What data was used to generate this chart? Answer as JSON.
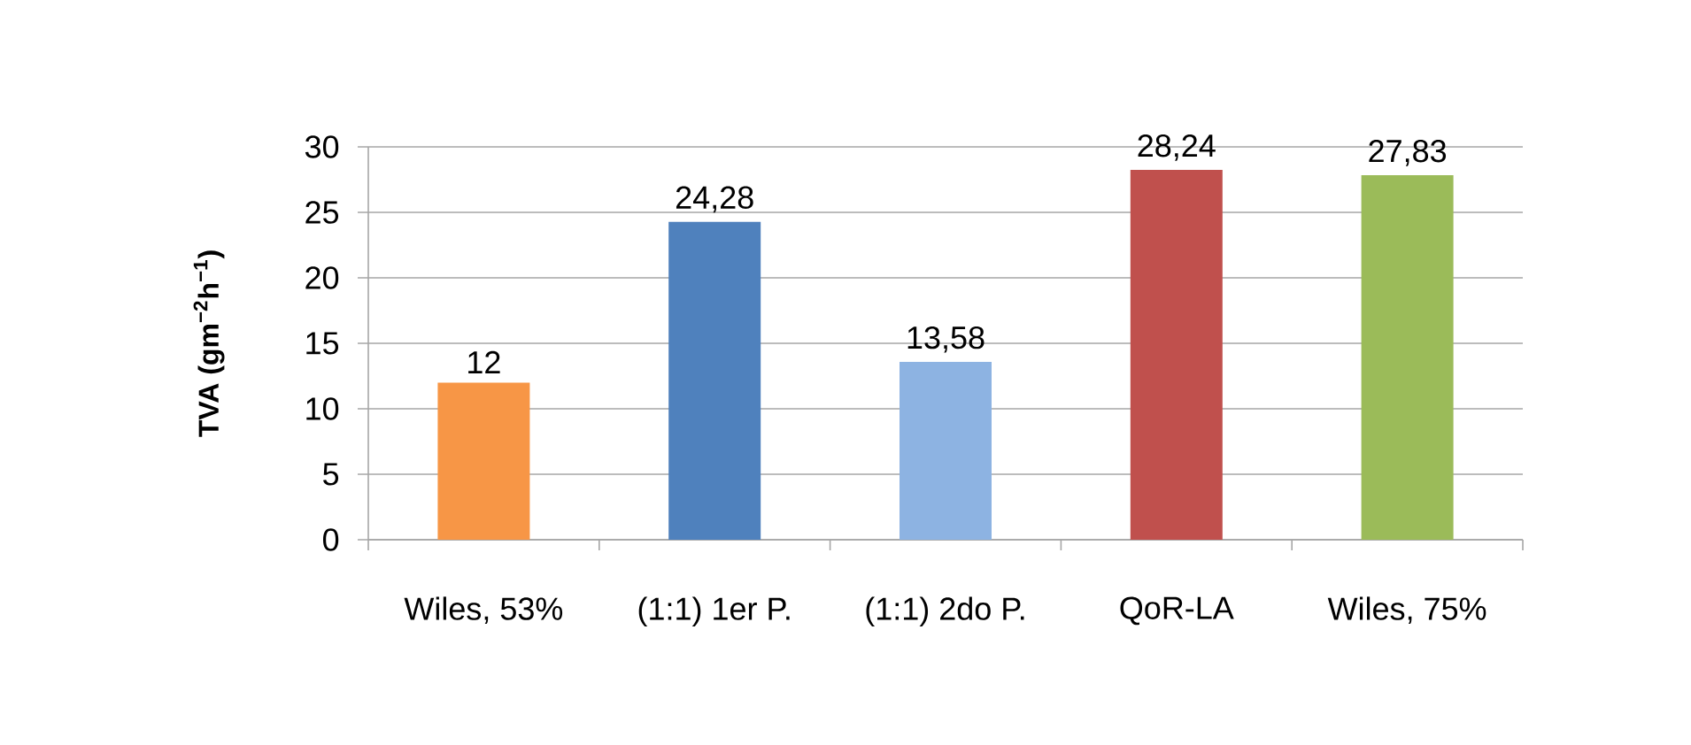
{
  "chart_data": {
    "type": "bar",
    "categories": [
      "Wiles, 53%",
      "(1:1) 1er P.",
      "(1:1) 2do P.",
      "QoR-LA",
      "Wiles, 75%"
    ],
    "values": [
      12,
      24.28,
      13.58,
      28.24,
      27.83
    ],
    "value_labels": [
      "12",
      "24,28",
      "13,58",
      "28,24",
      "27,83"
    ],
    "colors": [
      "#f79646",
      "#4f81bd",
      "#8db3e2",
      "#c0504d",
      "#9bbb59"
    ],
    "ylabel": "TVA (gm$^{−2}$h$^{−1}$)",
    "ylim": [
      0,
      30
    ],
    "yticks": [
      0,
      5,
      10,
      15,
      20,
      25,
      30
    ],
    "grid": "y"
  }
}
